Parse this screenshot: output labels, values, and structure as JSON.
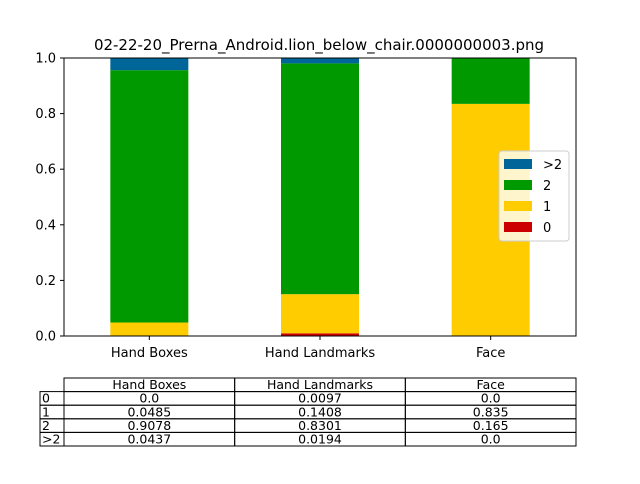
{
  "chart_data": {
    "type": "bar",
    "stacked": true,
    "title": "02-22-20_Prerna_Android.lion_below_chair.0000000003.png",
    "categories": [
      "Hand Boxes",
      "Hand Landmarks",
      "Face"
    ],
    "series": [
      {
        "name": "0",
        "values": [
          0.0,
          0.0097,
          0.0
        ],
        "color": "#cc0000"
      },
      {
        "name": "1",
        "values": [
          0.0485,
          0.1408,
          0.835
        ],
        "color": "#ffcc00"
      },
      {
        "name": "2",
        "values": [
          0.9078,
          0.8301,
          0.165
        ],
        "color": "#009900"
      },
      {
        "name": ">2",
        "values": [
          0.0437,
          0.0194,
          0.0
        ],
        "color": "#006699"
      }
    ],
    "ylim": [
      0,
      1.0
    ],
    "yticks": [
      "0.0",
      "0.2",
      "0.4",
      "0.6",
      "0.8",
      "1.0"
    ],
    "grid": false,
    "legend": {
      "position": "center-right",
      "order": [
        ">2",
        "2",
        "1",
        "0"
      ]
    },
    "table": {
      "col_labels": [
        "Hand Boxes",
        "Hand Landmarks",
        "Face"
      ],
      "row_labels": [
        "0",
        "1",
        "2",
        ">2"
      ],
      "cells": [
        [
          "0.0",
          "0.0097",
          "0.0"
        ],
        [
          "0.0485",
          "0.1408",
          "0.835"
        ],
        [
          "0.9078",
          "0.8301",
          "0.165"
        ],
        [
          "0.0437",
          "0.0194",
          "0.0"
        ]
      ]
    }
  }
}
